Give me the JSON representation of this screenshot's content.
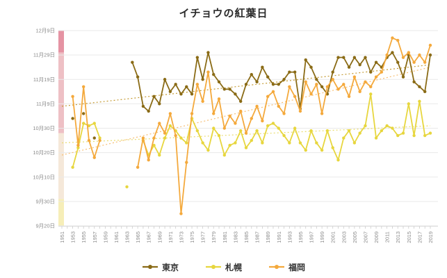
{
  "page_title": "イチョウの紅葉日",
  "chart_data": {
    "type": "line",
    "title": "イチョウの紅葉日",
    "x_label": "",
    "y_label": "",
    "x": [
      1951,
      1952,
      1953,
      1954,
      1955,
      1956,
      1957,
      1958,
      1959,
      1960,
      1961,
      1962,
      1963,
      1964,
      1965,
      1966,
      1967,
      1968,
      1969,
      1970,
      1971,
      1972,
      1973,
      1974,
      1975,
      1976,
      1977,
      1978,
      1979,
      1980,
      1981,
      1982,
      1983,
      1984,
      1985,
      1986,
      1987,
      1988,
      1989,
      1990,
      1991,
      1992,
      1993,
      1994,
      1995,
      1996,
      1997,
      1998,
      1999,
      2000,
      2001,
      2002,
      2003,
      2004,
      2005,
      2006,
      2007,
      2008,
      2009,
      2010,
      2011,
      2012,
      2013,
      2014,
      2015,
      2016,
      2017,
      2018,
      2019
    ],
    "x_tick_labels": [
      "1951",
      "1953",
      "1955",
      "1957",
      "1959",
      "1961",
      "1963",
      "1965",
      "1967",
      "1969",
      "1971",
      "1973",
      "1975",
      "1977",
      "1979",
      "1981",
      "1983",
      "1985",
      "1987",
      "1989",
      "1991",
      "1993",
      "1995",
      "1997",
      "1999",
      "2001",
      "2003",
      "2005",
      "2007",
      "2009",
      "2011",
      "2013",
      "2015",
      "2017",
      "2019"
    ],
    "y_tick_labels": [
      "12月9日",
      "11月29日",
      "11月19日",
      "11月9日",
      "10月30日",
      "10月20日",
      "10月10日",
      "9月30日",
      "9月20日"
    ],
    "y_axis": {
      "min_date": "09/20",
      "max_date": "12/09",
      "days_per_gridline": 10
    },
    "grid": "horizontal",
    "legend_position": "bottom",
    "series": [
      {
        "name": "東京",
        "color": "#8a6b16",
        "values": [
          null,
          null,
          "11/03",
          null,
          "11/05",
          null,
          "10/26",
          null,
          null,
          null,
          null,
          null,
          null,
          "11/26",
          "11/20",
          "11/08",
          "11/06",
          "11/12",
          "11/09",
          "11/19",
          "11/14",
          "11/17",
          "11/13",
          "11/16",
          "11/13",
          "11/28",
          "11/19",
          "11/30",
          "11/21",
          "11/18",
          "11/15",
          "11/15",
          "11/13",
          "11/10",
          "11/17",
          "11/21",
          "11/18",
          "11/24",
          "11/20",
          "11/17",
          "11/17",
          "11/19",
          "11/22",
          "11/22",
          "11/07",
          "11/27",
          "11/24",
          "11/19",
          "11/16",
          "11/13",
          "11/22",
          "11/28",
          "11/28",
          "11/24",
          "11/28",
          "11/25",
          "11/28",
          "11/22",
          "11/26",
          "11/24",
          "11/28",
          "11/30",
          "11/26",
          "11/20",
          "11/29",
          "11/18",
          "11/16",
          "11/14",
          "11/29"
        ]
      },
      {
        "name": "札幌",
        "color": "#e7d63e",
        "values": [
          null,
          null,
          "10/14",
          "10/22",
          "11/01",
          "10/31",
          "11/01",
          "10/26",
          null,
          null,
          null,
          null,
          "10/06",
          null,
          null,
          "10/25",
          "10/19",
          "10/23",
          "10/19",
          "10/26",
          "10/31",
          "10/29",
          "10/26",
          "10/24",
          "11/03",
          "10/29",
          "10/24",
          "10/21",
          "10/30",
          "10/27",
          "10/19",
          "10/23",
          "10/24",
          "10/29",
          "10/22",
          "10/25",
          "10/29",
          "10/24",
          "10/31",
          "11/01",
          "10/30",
          "10/27",
          "10/24",
          "10/30",
          "10/24",
          "10/21",
          "10/29",
          "10/24",
          "10/21",
          "10/29",
          "10/22",
          "10/17",
          "10/26",
          "10/29",
          "10/24",
          "10/28",
          "10/31",
          "11/13",
          "10/26",
          "10/29",
          "10/31",
          "10/30",
          "10/27",
          "10/28",
          "11/09",
          "10/27",
          "11/10",
          "10/27",
          "10/28"
        ]
      },
      {
        "name": "福岡",
        "color": "#f4a93c",
        "values": [
          null,
          null,
          "11/12",
          "10/23",
          "11/16",
          "10/25",
          "10/18",
          "10/25",
          null,
          null,
          null,
          null,
          null,
          null,
          "10/14",
          "10/26",
          "10/17",
          "10/26",
          "11/01",
          "10/28",
          "11/05",
          "10/27",
          "09/25",
          "10/16",
          "11/05",
          "11/17",
          "11/10",
          "11/22",
          "11/05",
          "11/11",
          "10/30",
          "11/04",
          "11/01",
          "11/06",
          "10/28",
          "11/03",
          "11/08",
          "11/02",
          "11/12",
          "11/14",
          "11/08",
          "11/05",
          "11/16",
          "11/12",
          "11/06",
          "11/18",
          "11/13",
          "11/17",
          "11/05",
          "11/16",
          "11/19",
          "11/15",
          "11/17",
          "11/12",
          "11/20",
          "11/14",
          "11/18",
          "11/16",
          "11/20",
          "11/22",
          "11/29",
          "12/06",
          "12/05",
          "11/28",
          "11/30",
          "11/26",
          "11/29",
          "11/26",
          "12/03"
        ]
      }
    ],
    "trend_lines": [
      {
        "series": "東京",
        "start": "11/08",
        "end": "11/25",
        "color": "#c49a33",
        "style": "dotted"
      },
      {
        "series": "札幌",
        "start": "10/24",
        "end": "10/31",
        "color": "#e9dc6f",
        "style": "dotted"
      },
      {
        "series": "福岡",
        "start": "10/19",
        "end": "11/24",
        "color": "#f6bd72",
        "style": "dotted"
      }
    ],
    "y_bands": [
      {
        "from": "12/09",
        "to": "11/30",
        "color": "#e593a3"
      },
      {
        "from": "11/30",
        "to": "10/28",
        "color": "#eec0c5"
      },
      {
        "from": "10/28",
        "to": "10/01",
        "color": "#f5e8d9"
      },
      {
        "from": "10/01",
        "to": "09/20",
        "color": "#f6eeb8"
      }
    ],
    "colors": {
      "gridline": "#e9e9e9",
      "axis": "#d9d9d9",
      "tick": "#c9c9c9",
      "axis_text": "#8a8a8a",
      "title_text": "#2b2b2b"
    }
  }
}
